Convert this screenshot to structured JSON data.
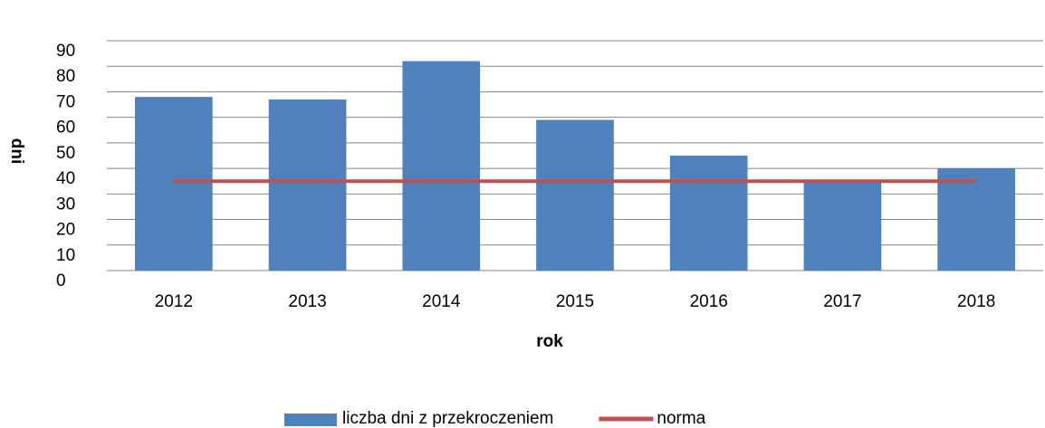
{
  "chart_data": {
    "type": "bar",
    "categories": [
      "2012",
      "2013",
      "2014",
      "2015",
      "2016",
      "2017",
      "2018"
    ],
    "series": [
      {
        "name": "liczba dni z przekroczeniem",
        "type": "bar",
        "color": "#4f81bd",
        "values": [
          68,
          67,
          82,
          59,
          45,
          35,
          40
        ]
      },
      {
        "name": "norma",
        "type": "line",
        "color": "#c0504d",
        "values": [
          35,
          35,
          35,
          35,
          35,
          35,
          35
        ]
      }
    ],
    "xlabel": "rok",
    "ylabel": "dni",
    "ylim": [
      0,
      90
    ],
    "yticks": [
      0,
      10,
      20,
      30,
      40,
      50,
      60,
      70,
      80,
      90
    ],
    "grid": true,
    "legend": "bottom"
  }
}
